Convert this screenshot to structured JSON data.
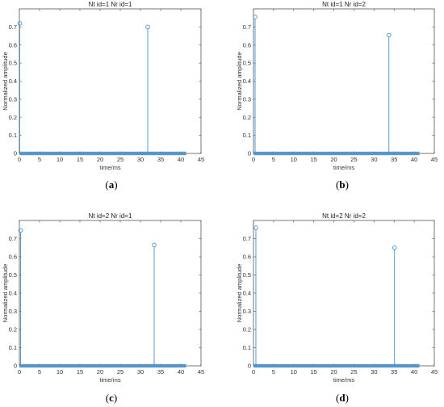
{
  "stem_color": "#4a90c8",
  "chart_data": [
    {
      "type": "stem",
      "title": "Nt id=1 Nr id=1",
      "caption": "(a)",
      "caption_letter": "a",
      "xlabel": "time/ms",
      "ylabel": "Normalized amplitude",
      "xlim": [
        0,
        45
      ],
      "ylim": [
        0,
        0.8
      ],
      "xticks": [
        0,
        5,
        10,
        15,
        20,
        25,
        30,
        35,
        40,
        45
      ],
      "yticks": [
        0,
        0.1,
        0.2,
        0.3,
        0.4,
        0.5,
        0.6,
        0.7
      ],
      "baseline_range": [
        0,
        41.3
      ],
      "peaks": [
        {
          "x": 0.1,
          "y": 0.72
        },
        {
          "x": 31.8,
          "y": 0.7
        }
      ]
    },
    {
      "type": "stem",
      "title": "Nt id=1 Nr id=2",
      "caption": "(b)",
      "caption_letter": "b",
      "xlabel": "time/ms",
      "ylabel": "Normalized amplitude",
      "xlim": [
        0,
        45
      ],
      "ylim": [
        0,
        0.8
      ],
      "xticks": [
        0,
        5,
        10,
        15,
        20,
        25,
        30,
        35,
        40,
        45
      ],
      "yticks": [
        0,
        0.1,
        0.2,
        0.3,
        0.4,
        0.5,
        0.6,
        0.7
      ],
      "baseline_range": [
        0,
        41.3
      ],
      "peaks": [
        {
          "x": 0.4,
          "y": 0.755
        },
        {
          "x": 33.7,
          "y": 0.655
        }
      ]
    },
    {
      "type": "stem",
      "title": "Nt id=2 Nr id=1",
      "caption": "(c)",
      "caption_letter": "c",
      "xlabel": "time/ms",
      "ylabel": "Normalized amplitude",
      "xlim": [
        0,
        45
      ],
      "ylim": [
        0,
        0.8
      ],
      "xticks": [
        0,
        5,
        10,
        15,
        20,
        25,
        30,
        35,
        40,
        45
      ],
      "yticks": [
        0,
        0.1,
        0.2,
        0.3,
        0.4,
        0.5,
        0.6,
        0.7
      ],
      "baseline_range": [
        0,
        41.3
      ],
      "peaks": [
        {
          "x": 0.3,
          "y": 0.745
        },
        {
          "x": 33.4,
          "y": 0.665
        }
      ]
    },
    {
      "type": "stem",
      "title": "Nt id=2 Nr id=2",
      "caption": "(d)",
      "caption_letter": "d",
      "xlabel": "time/ms",
      "ylabel": "Normalized amplitude",
      "xlim": [
        0,
        45
      ],
      "ylim": [
        0,
        0.8
      ],
      "xticks": [
        0,
        5,
        10,
        15,
        20,
        25,
        30,
        35,
        40,
        45
      ],
      "yticks": [
        0,
        0.1,
        0.2,
        0.3,
        0.4,
        0.5,
        0.6,
        0.7
      ],
      "baseline_range": [
        0,
        41.3
      ],
      "peaks": [
        {
          "x": 0.6,
          "y": 0.76
        },
        {
          "x": 35.1,
          "y": 0.65
        }
      ]
    }
  ]
}
